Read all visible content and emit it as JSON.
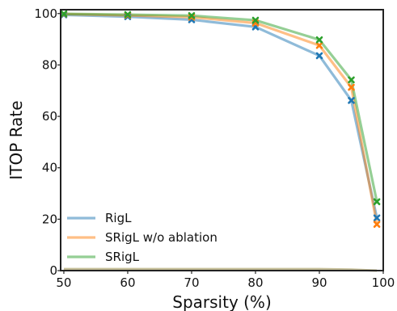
{
  "chart_data": {
    "type": "line",
    "xlabel": "Sparsity (%)",
    "ylabel": "ITOP Rate",
    "xlim": [
      49.5,
      100
    ],
    "ylim": [
      0,
      101.5
    ],
    "xticks": [
      50,
      60,
      70,
      80,
      90,
      100
    ],
    "yticks": [
      0,
      20,
      40,
      60,
      80,
      100
    ],
    "grid": false,
    "legend_position": "lower-left",
    "x": [
      50,
      60,
      70,
      80,
      90,
      95,
      99
    ],
    "series": [
      {
        "name": "RigL",
        "color": "#1f77b4",
        "values": [
          99.5,
          98.8,
          97.6,
          94.8,
          83.6,
          66.2,
          20.5
        ]
      },
      {
        "name": "SRigL w/o ablation",
        "color": "#ff7f0e",
        "values": [
          99.8,
          99.3,
          98.6,
          96.3,
          87.6,
          71.3,
          18.0
        ]
      },
      {
        "name": "SRigL",
        "color": "#2ca02c",
        "values": [
          99.9,
          99.6,
          99.2,
          97.4,
          89.8,
          74.2,
          26.8
        ]
      }
    ],
    "baseline_series": {
      "color": "#b5ad7d",
      "values": [
        0.6,
        0.6,
        0.6,
        0.6,
        0.6,
        0.4,
        0.0
      ]
    }
  }
}
